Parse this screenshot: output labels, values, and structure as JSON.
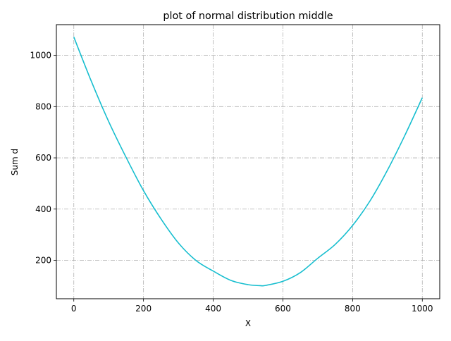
{
  "chart_data": {
    "type": "line",
    "title": "plot of normal distribution middle",
    "xlabel": "X",
    "ylabel": "Sum d",
    "xlim": [
      -50,
      1050
    ],
    "ylim": [
      50,
      1120
    ],
    "xticks": [
      0,
      200,
      400,
      600,
      800,
      1000
    ],
    "yticks": [
      200,
      400,
      600,
      800,
      1000
    ],
    "grid": true,
    "line_color": "#17becf",
    "series": [
      {
        "x": [
          0,
          50,
          100,
          150,
          200,
          250,
          300,
          350,
          400,
          450,
          500,
          535,
          550,
          600,
          650,
          700,
          750,
          800,
          850,
          900,
          950,
          1000
        ],
        "y": [
          1072,
          900,
          742,
          602,
          472,
          362,
          268,
          200,
          158,
          122,
          105,
          101,
          102,
          118,
          152,
          208,
          262,
          336,
          432,
          552,
          688,
          835
        ]
      }
    ]
  }
}
